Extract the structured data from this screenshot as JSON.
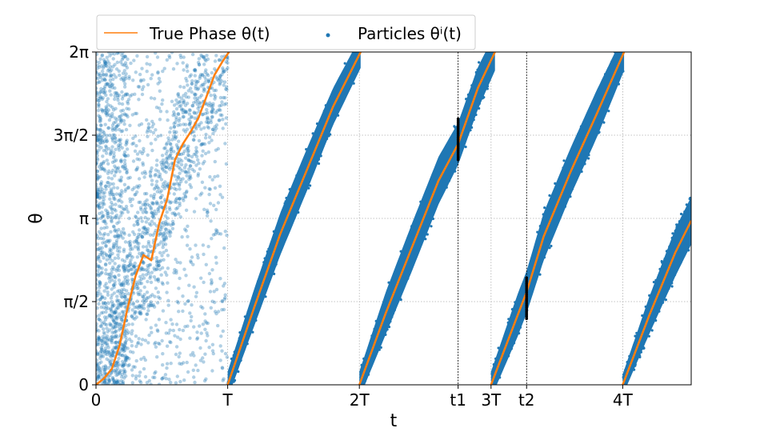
{
  "chart_data": {
    "type": "scatter",
    "title": "",
    "xlabel": "t",
    "ylabel": "θ",
    "period_T": 5,
    "xlim": [
      0,
      22.6
    ],
    "ylim": [
      0,
      6.2832
    ],
    "grid": true,
    "legend": {
      "placement": "top-left",
      "entries": [
        {
          "name": "True Phase θ(t)",
          "kind": "line",
          "color": "#ff7f0e"
        },
        {
          "name": "Particles θⁱ(t)",
          "kind": "marker",
          "color": "#1f77b4"
        }
      ]
    },
    "x_ticks": [
      {
        "value": 0,
        "label": "0"
      },
      {
        "value": 5,
        "label": "T"
      },
      {
        "value": 10,
        "label": "2T"
      },
      {
        "value": 13.75,
        "label": "t1"
      },
      {
        "value": 15,
        "label": "3T"
      },
      {
        "value": 16.35,
        "label": "t2"
      },
      {
        "value": 20,
        "label": "4T"
      }
    ],
    "y_ticks": [
      {
        "value": 0,
        "label": "0"
      },
      {
        "value": 1.5708,
        "label": "π/2"
      },
      {
        "value": 3.1416,
        "label": "π"
      },
      {
        "value": 4.7124,
        "label": "3π/2"
      },
      {
        "value": 6.2832,
        "label": "2π"
      }
    ],
    "vlines": [
      13.75,
      16.35
    ],
    "series": [
      {
        "name": "True Phase θ(t)",
        "kind": "line",
        "color": "#ff7f0e",
        "segments": [
          {
            "x": [
              0,
              0.3,
              0.6,
              0.9,
              1.2,
              1.5,
              1.8,
              2.1,
              2.4,
              2.7,
              3.0,
              3.3,
              3.6,
              3.9,
              4.2,
              4.5,
              4.8,
              5.05
            ],
            "y": [
              0,
              0.12,
              0.3,
              0.75,
              1.45,
              2.05,
              2.45,
              2.35,
              3.05,
              3.5,
              4.25,
              4.55,
              4.78,
              5.05,
              5.45,
              5.85,
              6.1,
              6.2832
            ]
          },
          {
            "x": [
              5.0,
              6.0,
              7.0,
              8.0,
              9.0,
              10.05
            ],
            "y": [
              0,
              1.45,
              2.85,
              4.05,
              5.25,
              6.2832
            ]
          },
          {
            "x": [
              10.0,
              11.0,
              12.0,
              13.0,
              13.75,
              14.5,
              15.15
            ],
            "y": [
              0,
              1.35,
              2.6,
              3.85,
              4.55,
              5.6,
              6.2832
            ]
          },
          {
            "x": [
              15.0,
              16.0,
              16.35,
              17.0,
              18.0,
              19.0,
              20.05
            ],
            "y": [
              0,
              1.3,
              1.75,
              2.8,
              4.0,
              5.1,
              6.2832
            ]
          },
          {
            "x": [
              20.0,
              21.0,
              22.0,
              22.6
            ],
            "y": [
              0,
              1.3,
              2.5,
              3.1
            ]
          }
        ]
      },
      {
        "name": "Particles θⁱ(t)",
        "kind": "scatter",
        "color": "#1f77b4",
        "bands": [
          {
            "x": [
              5.0,
              6.0,
              7.0,
              8.0,
              9.0,
              10.05
            ],
            "center": [
              0,
              1.45,
              2.85,
              4.05,
              5.25,
              6.2832
            ],
            "halfwidth": [
              0.25,
              0.35,
              0.4,
              0.4,
              0.35,
              0.3
            ]
          },
          {
            "x": [
              10.0,
              11.0,
              12.0,
              13.0,
              13.75,
              14.5,
              15.15
            ],
            "center": [
              0,
              1.35,
              2.6,
              3.85,
              4.55,
              5.6,
              6.2832
            ],
            "halfwidth": [
              0.25,
              0.4,
              0.45,
              0.45,
              0.4,
              0.4,
              0.35
            ]
          },
          {
            "x": [
              15.0,
              16.0,
              16.35,
              17.0,
              18.0,
              19.0,
              20.05
            ],
            "center": [
              0,
              1.3,
              1.75,
              2.8,
              4.0,
              5.1,
              6.2832
            ],
            "halfwidth": [
              0.25,
              0.4,
              0.4,
              0.45,
              0.45,
              0.45,
              0.35
            ]
          },
          {
            "x": [
              20.0,
              21.0,
              22.0,
              22.6
            ],
            "center": [
              0,
              1.3,
              2.5,
              3.1
            ],
            "halfwidth": [
              0.2,
              0.35,
              0.45,
              0.45
            ]
          }
        ],
        "early_cloud": {
          "x_range": [
            0,
            5.0
          ],
          "y_range": [
            0,
            6.2832
          ]
        }
      },
      {
        "name": "Particles at t1",
        "kind": "scatter",
        "color": "#000000",
        "x": 13.75,
        "y_range": [
          4.25,
          5.05
        ]
      },
      {
        "name": "Particles at t2",
        "kind": "scatter",
        "color": "#000000",
        "x": 16.35,
        "y_range": [
          1.25,
          2.05
        ]
      }
    ]
  }
}
